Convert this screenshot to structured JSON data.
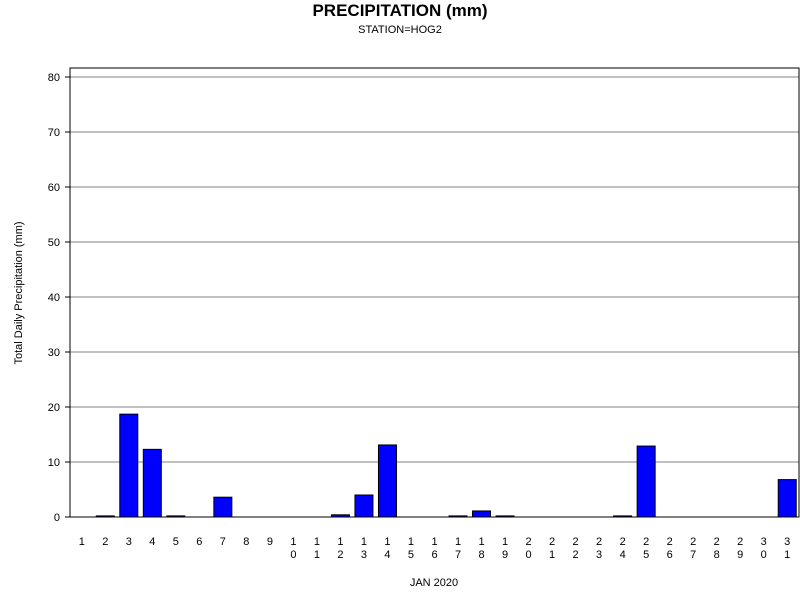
{
  "chart_data": {
    "type": "bar",
    "title": "PRECIPITATION (mm)",
    "subtitle": "STATION=HOG2",
    "xlabel": "JAN 2020",
    "ylabel": "Total Daily Precipitation (mm)",
    "ylim": [
      0,
      80
    ],
    "yticks": [
      0,
      10,
      20,
      30,
      40,
      50,
      60,
      70,
      80
    ],
    "grid": "horizontal",
    "categories": [
      "1",
      "2",
      "3",
      "4",
      "5",
      "6",
      "7",
      "8",
      "9",
      "10",
      "11",
      "12",
      "13",
      "14",
      "15",
      "16",
      "17",
      "18",
      "19",
      "20",
      "21",
      "22",
      "23",
      "24",
      "25",
      "26",
      "27",
      "28",
      "29",
      "30",
      "31"
    ],
    "values": [
      null,
      0.2,
      18.7,
      12.3,
      0.2,
      null,
      3.6,
      null,
      null,
      null,
      null,
      0.4,
      4.0,
      13.1,
      null,
      null,
      0.2,
      1.1,
      0.2,
      null,
      null,
      null,
      null,
      0.2,
      12.9,
      null,
      null,
      null,
      null,
      null,
      6.8
    ],
    "colors": {
      "bar": "#0000ff",
      "bar_edge": "#000000",
      "grid": "#808080"
    }
  }
}
